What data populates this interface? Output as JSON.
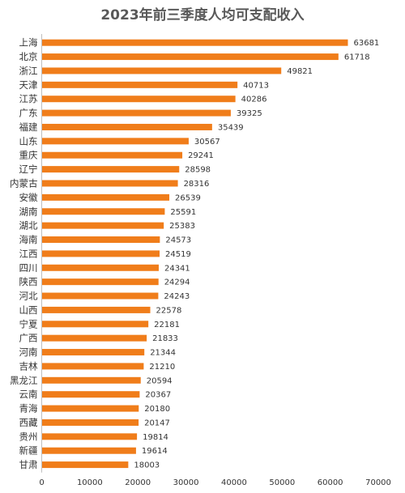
{
  "chart_data": {
    "type": "bar",
    "orientation": "horizontal",
    "title": "2023年前三季度人均可支配收入",
    "categories": [
      "上海",
      "北京",
      "浙江",
      "天津",
      "江苏",
      "广东",
      "福建",
      "山东",
      "重庆",
      "辽宁",
      "内蒙古",
      "安徽",
      "湖南",
      "湖北",
      "海南",
      "江西",
      "四川",
      "陕西",
      "河北",
      "山西",
      "宁夏",
      "广西",
      "河南",
      "吉林",
      "黑龙江",
      "云南",
      "青海",
      "西藏",
      "贵州",
      "新疆",
      "甘肃"
    ],
    "values": [
      63681,
      61718,
      49821,
      40713,
      40286,
      39325,
      35439,
      30567,
      29241,
      28598,
      28316,
      26539,
      25591,
      25383,
      24573,
      24519,
      24341,
      24294,
      24243,
      22578,
      22181,
      21833,
      21344,
      21210,
      20594,
      20367,
      20180,
      20147,
      19814,
      19614,
      18003
    ],
    "xlim": [
      0,
      70000
    ],
    "ticks": [
      0,
      10000,
      20000,
      30000,
      40000,
      50000,
      60000,
      70000
    ],
    "tick_labels": [
      "0",
      "10000",
      "20000",
      "30000",
      "40000",
      "50000",
      "60000",
      "70000"
    ],
    "data_labels": true,
    "grid": false,
    "legend": "none",
    "bar_color": "#f07d1a"
  }
}
